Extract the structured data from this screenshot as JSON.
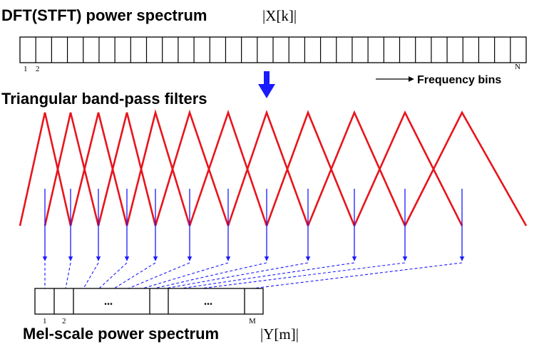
{
  "top": {
    "title": "DFT(STFT) power spectrum",
    "math": "|X[k]|",
    "bin_count": 32,
    "label_first": "1",
    "label_second": "2",
    "label_last": "N",
    "axis_label": "Frequency bins"
  },
  "filters": {
    "title": "Triangular band-pass filters",
    "count": 12
  },
  "bottom": {
    "title": "Mel-scale power spectrum",
    "math": "|Y[m]|",
    "label_first": "1",
    "label_second": "2",
    "label_last": "M",
    "ellipsis_1": "...",
    "ellipsis_2": "..."
  },
  "colors": {
    "filter": "#e8141c",
    "arrow": "#1a1aff",
    "text": "#000000"
  }
}
